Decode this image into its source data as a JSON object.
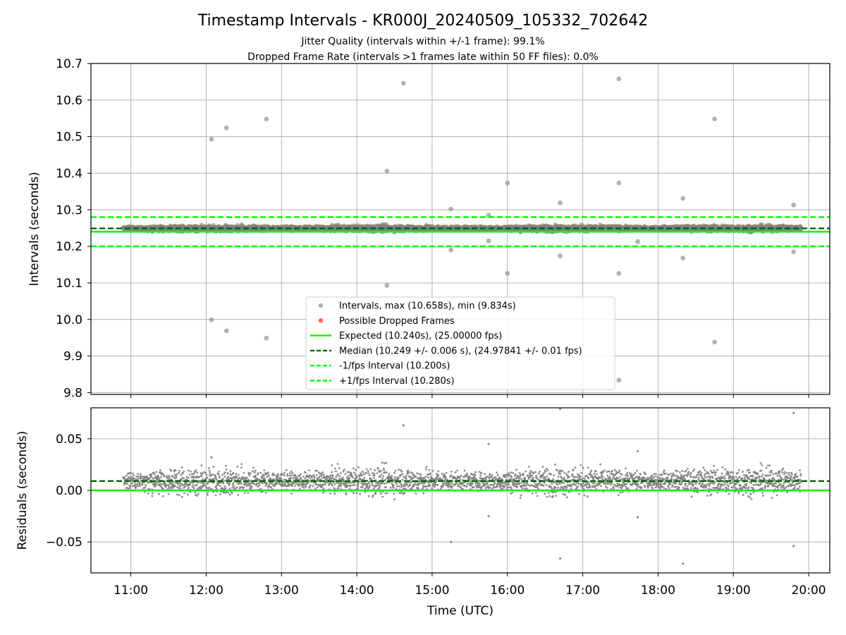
{
  "figure": {
    "title": "Timestamp Intervals - KR000J_20240509_105332_702642",
    "subtitle_1": "Jitter Quality (intervals within +/-1 frame): 99.1%",
    "subtitle_2": "Dropped Frame Rate (intervals >1 frames late within 50 FF files): 0.0%"
  },
  "colors": {
    "points": "#808080",
    "dropped": "#ff0000",
    "expected": "#00ff00",
    "median": "#006400",
    "fps_band": "#00ff00",
    "grid": "#b0b0b0"
  },
  "chart_data": [
    {
      "type": "scatter",
      "title": "",
      "xlabel": "",
      "ylabel": "Intervals (seconds)",
      "xlim_hours": [
        10.47,
        20.28
      ],
      "ylim": [
        9.795,
        10.7
      ],
      "yticks": [
        "9.8",
        "9.9",
        "10.0",
        "10.1",
        "10.2",
        "10.3",
        "10.4",
        "10.5",
        "10.6",
        "10.7"
      ],
      "grid": true,
      "legend_position": "lower center",
      "dense_band": {
        "x_start_hours": 10.9,
        "x_end_hours": 19.9,
        "center": 10.249,
        "spread": 0.011
      },
      "outliers": [
        [
          12.07,
          10.493
        ],
        [
          12.27,
          10.524
        ],
        [
          12.8,
          10.548
        ],
        [
          14.4,
          10.406
        ],
        [
          14.62,
          10.646
        ],
        [
          15.25,
          10.302
        ],
        [
          15.75,
          10.285
        ],
        [
          16.0,
          10.373
        ],
        [
          16.7,
          10.319
        ],
        [
          17.48,
          10.658
        ],
        [
          17.48,
          10.373
        ],
        [
          18.33,
          10.331
        ],
        [
          18.75,
          10.548
        ],
        [
          19.8,
          10.313
        ],
        [
          12.07,
          9.999
        ],
        [
          12.27,
          9.969
        ],
        [
          12.8,
          9.949
        ],
        [
          14.4,
          10.093
        ],
        [
          15.25,
          10.19
        ],
        [
          15.75,
          10.215
        ],
        [
          16.0,
          10.126
        ],
        [
          16.7,
          10.174
        ],
        [
          17.48,
          10.126
        ],
        [
          17.48,
          9.834
        ],
        [
          17.73,
          10.213
        ],
        [
          18.33,
          10.168
        ],
        [
          18.75,
          9.938
        ],
        [
          19.8,
          10.185
        ]
      ],
      "series": [
        {
          "name": "Intervals, max (10.658s), min (9.834s)",
          "style": "points"
        },
        {
          "name": "Possible Dropped Frames",
          "style": "points"
        },
        {
          "name": "Expected (10.240s), (25.00000 fps)",
          "style": "solid",
          "value": 10.24
        },
        {
          "name": "Median (10.249 +/- 0.006 s), (24.97841 +/- 0.01 fps)",
          "style": "dashed",
          "value": 10.249
        },
        {
          "name": "-1/fps Interval (10.200s)",
          "style": "dashed",
          "value": 10.2
        },
        {
          "name": "+1/fps Interval (10.280s)",
          "style": "dashed",
          "value": 10.28
        }
      ]
    },
    {
      "type": "scatter",
      "title": "",
      "xlabel": "Time (UTC)",
      "ylabel": "Residuals (seconds)",
      "xlim_hours": [
        10.47,
        20.28
      ],
      "ylim": [
        -0.08,
        0.08
      ],
      "yticks": [
        "−0.05",
        "0.00",
        "0.05"
      ],
      "ytick_values": [
        -0.05,
        0.0,
        0.05
      ],
      "xticks": [
        "11:00",
        "12:00",
        "13:00",
        "14:00",
        "15:00",
        "16:00",
        "17:00",
        "18:00",
        "19:00",
        "20:00"
      ],
      "xtick_values_hours": [
        11,
        12,
        13,
        14,
        15,
        16,
        17,
        18,
        19,
        20
      ],
      "grid": true,
      "expected_line": 0.0,
      "median_line": 0.009,
      "outliers": [
        [
          12.07,
          0.032
        ],
        [
          14.62,
          0.063
        ],
        [
          15.25,
          -0.05
        ],
        [
          15.75,
          0.045
        ],
        [
          15.75,
          -0.025
        ],
        [
          16.7,
          0.079
        ],
        [
          16.7,
          -0.066
        ],
        [
          17.73,
          0.038
        ],
        [
          17.73,
          -0.026
        ],
        [
          18.33,
          -0.071
        ],
        [
          19.8,
          0.075
        ],
        [
          19.8,
          -0.054
        ]
      ]
    }
  ]
}
